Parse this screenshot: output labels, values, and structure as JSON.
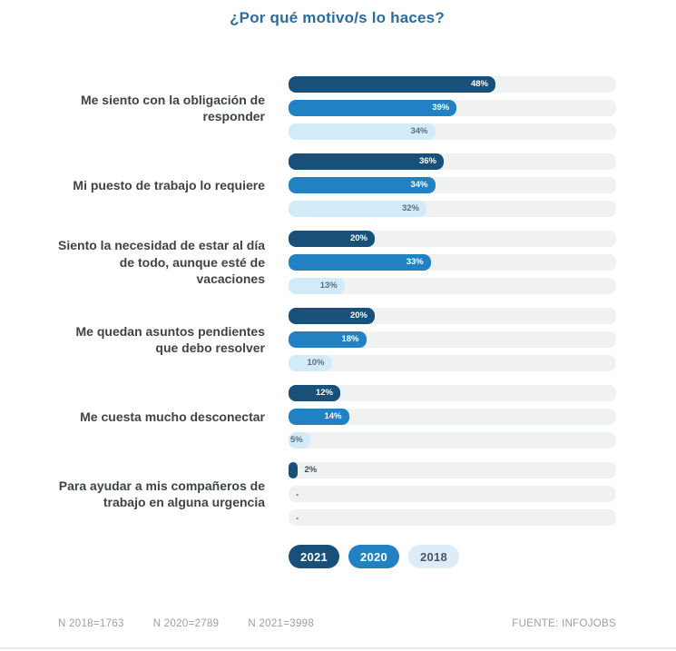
{
  "title": "¿Por qué motivo/s lo haces?",
  "chart_data": {
    "type": "bar",
    "orientation": "horizontal",
    "title": "¿Por qué motivo/s lo haces?",
    "categories": [
      "Me siento con la obligación de responder",
      "Mi puesto de trabajo lo requiere",
      "Siento la necesidad de estar al día de todo, aunque esté de vacaciones",
      "Me quedan asuntos pendientes que debo resolver",
      "Me cuesta mucho desconectar",
      "Para ayudar a mis compañeros de trabajo en alguna urgencia"
    ],
    "series": [
      {
        "name": "2021",
        "color": "#18507a",
        "values": [
          48,
          36,
          20,
          20,
          12,
          2
        ]
      },
      {
        "name": "2020",
        "color": "#2181c2",
        "values": [
          39,
          34,
          33,
          18,
          14,
          null
        ]
      },
      {
        "name": "2018",
        "color": "#d2ebf8",
        "values": [
          34,
          32,
          13,
          10,
          5,
          null
        ]
      }
    ],
    "value_suffix": "%",
    "xlim": [
      0,
      76
    ],
    "missing_marker": ".",
    "grid": false,
    "legend_position": "bottom"
  },
  "legend": [
    {
      "label": "2021",
      "bg": "#18507a",
      "fg": "#ffffff"
    },
    {
      "label": "2020",
      "bg": "#2181c2",
      "fg": "#ffffff"
    },
    {
      "label": "2018",
      "bg": "#ddecf7",
      "fg": "#4a555f"
    }
  ],
  "footer": {
    "notes": [
      "N 2018=1763",
      "N 2020=2789",
      "N 2021=3998"
    ],
    "source": "FUENTE: INFOJOBS"
  },
  "colors": {
    "track": "#f0f2f2",
    "title": "#2b6c9c",
    "category_label": "#3e4347",
    "value_on_light": "#5d6d7e",
    "footer_text": "#9aa0a4"
  }
}
